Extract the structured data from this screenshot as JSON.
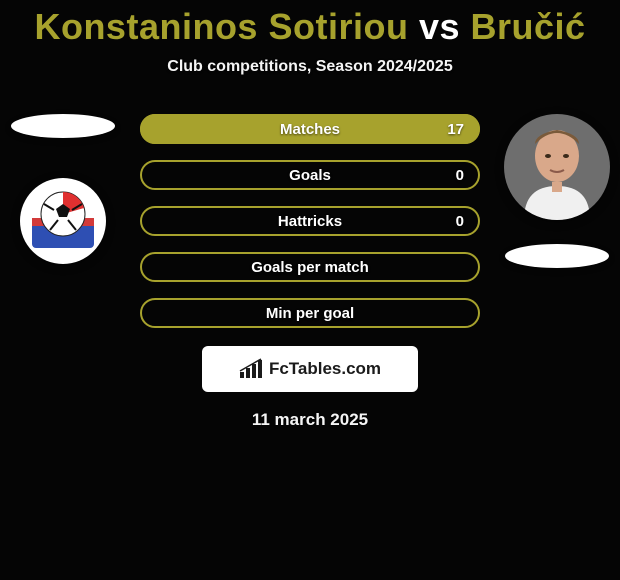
{
  "header": {
    "title_p1": "Konstaninos Sotiriou",
    "vs": " vs ",
    "title_p2": "Bručić",
    "p1_color": "#a7a22d",
    "vs_color": "#ffffff",
    "p2_color": "#a7a22d",
    "subtitle": "Club competitions, Season 2024/2025"
  },
  "accent_color": "#a7a22d",
  "stats": [
    {
      "label": "Matches",
      "right_value": "17",
      "fill_right_pct": 100
    },
    {
      "label": "Goals",
      "right_value": "0",
      "fill_right_pct": 0
    },
    {
      "label": "Hattricks",
      "right_value": "0",
      "fill_right_pct": 0
    },
    {
      "label": "Goals per match",
      "right_value": "",
      "fill_right_pct": 0
    },
    {
      "label": "Min per goal",
      "right_value": "",
      "fill_right_pct": 0
    }
  ],
  "left": {
    "club_colors": {
      "bg": "#ffffff",
      "ball": "#e03030",
      "stripe": "#2e4fb3"
    }
  },
  "right": {
    "player_skin": "#d9a88a",
    "player_bg": "#6e6e6e",
    "player_shirt": "#f0f0f0"
  },
  "footer": {
    "logo_text": "FcTables.com",
    "date": "11 march 2025"
  }
}
